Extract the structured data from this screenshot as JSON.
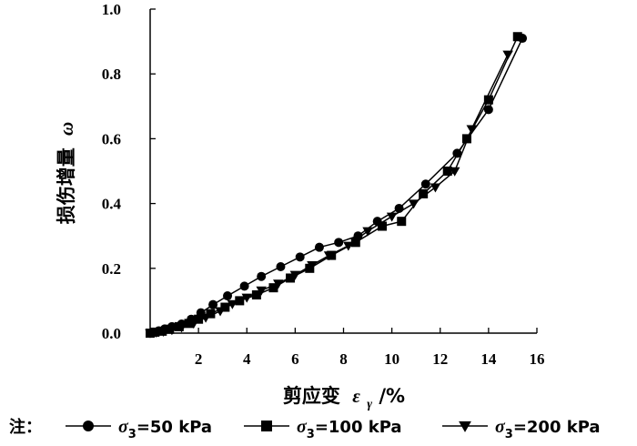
{
  "chart_data": {
    "type": "line",
    "title": "",
    "xlabel": "剪应变",
    "xlabel_symbol": "ε",
    "xlabel_sub": "γ",
    "xlabel_unit": "/%",
    "ylabel": "损伤增量",
    "ylabel_symbol": "ω",
    "xlim": [
      0,
      16
    ],
    "ylim": [
      0,
      1.0
    ],
    "x_ticks": [
      "2",
      "4",
      "6",
      "8",
      "10",
      "12",
      "14",
      "16"
    ],
    "y_ticks": [
      "0.0",
      "0.2",
      "0.4",
      "0.6",
      "0.8",
      "1.0"
    ],
    "grid": false,
    "legend_prefix": "注：",
    "legend_position": "bottom",
    "series": [
      {
        "name": "σ3=50 kPa",
        "label_symbol": "σ",
        "label_sub": "3",
        "label_rest": "=50 kPa",
        "marker": "circle",
        "color": "#000000",
        "x": [
          0.0,
          0.15,
          0.35,
          0.6,
          0.9,
          1.3,
          1.7,
          2.1,
          2.6,
          3.2,
          3.9,
          4.6,
          5.4,
          6.2,
          7.0,
          7.8,
          8.6,
          9.4,
          10.3,
          11.4,
          12.7,
          14.0,
          15.4
        ],
        "y": [
          0.0,
          0.003,
          0.007,
          0.013,
          0.02,
          0.028,
          0.043,
          0.063,
          0.088,
          0.115,
          0.145,
          0.175,
          0.205,
          0.235,
          0.265,
          0.28,
          0.3,
          0.345,
          0.385,
          0.46,
          0.555,
          0.69,
          0.91
        ]
      },
      {
        "name": "σ3=100 kPa",
        "label_symbol": "σ",
        "label_sub": "3",
        "label_rest": "=100 kPa",
        "marker": "square",
        "color": "#000000",
        "x": [
          0.0,
          0.2,
          0.5,
          0.8,
          1.2,
          1.6,
          2.0,
          2.5,
          3.1,
          3.7,
          4.4,
          5.1,
          5.8,
          6.6,
          7.5,
          8.5,
          9.6,
          10.4,
          11.3,
          12.3,
          13.1,
          14.0,
          15.2
        ],
        "y": [
          0.0,
          0.003,
          0.006,
          0.012,
          0.02,
          0.03,
          0.043,
          0.06,
          0.08,
          0.1,
          0.118,
          0.14,
          0.17,
          0.2,
          0.24,
          0.28,
          0.33,
          0.345,
          0.43,
          0.5,
          0.6,
          0.72,
          0.915
        ]
      },
      {
        "name": "σ3=200 kPa",
        "label_symbol": "σ",
        "label_sub": "3",
        "label_rest": "=200 kPa",
        "marker": "triangle-down",
        "color": "#000000",
        "x": [
          0.0,
          0.25,
          0.55,
          0.9,
          1.3,
          1.8,
          2.3,
          2.9,
          3.4,
          4.0,
          4.6,
          5.3,
          6.0,
          6.7,
          7.4,
          8.2,
          9.0,
          10.0,
          10.9,
          11.8,
          12.6,
          13.3,
          14.8
        ],
        "y": [
          0.0,
          0.002,
          0.005,
          0.01,
          0.018,
          0.03,
          0.048,
          0.068,
          0.09,
          0.11,
          0.132,
          0.153,
          0.18,
          0.21,
          0.24,
          0.27,
          0.315,
          0.36,
          0.4,
          0.45,
          0.5,
          0.63,
          0.86
        ]
      }
    ]
  }
}
